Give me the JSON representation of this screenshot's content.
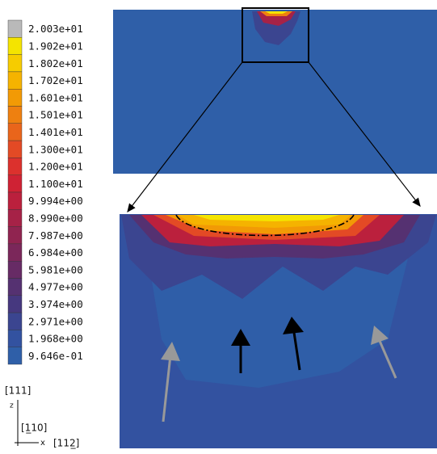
{
  "legend": {
    "levels": [
      {
        "label": "2.003e+01",
        "color": "#b9b9b9"
      },
      {
        "label": "1.902e+01",
        "color": "#f4e400"
      },
      {
        "label": "1.802e+01",
        "color": "#f6cc00"
      },
      {
        "label": "1.702e+01",
        "color": "#f5b300"
      },
      {
        "label": "1.601e+01",
        "color": "#f29a05"
      },
      {
        "label": "1.501e+01",
        "color": "#ee8010"
      },
      {
        "label": "1.401e+01",
        "color": "#e9651b"
      },
      {
        "label": "1.300e+01",
        "color": "#e34a25"
      },
      {
        "label": "1.200e+01",
        "color": "#dc312d"
      },
      {
        "label": "1.100e+01",
        "color": "#cf2234"
      },
      {
        "label": "9.994e+00",
        "color": "#bb203d"
      },
      {
        "label": "8.990e+00",
        "color": "#a62247"
      },
      {
        "label": "7.987e+00",
        "color": "#902450"
      },
      {
        "label": "6.984e+00",
        "color": "#7b275a"
      },
      {
        "label": "5.981e+00",
        "color": "#672b65"
      },
      {
        "label": "4.977e+00",
        "color": "#553171"
      },
      {
        "label": "3.974e+00",
        "color": "#46387f"
      },
      {
        "label": "2.971e+00",
        "color": "#3b4590"
      },
      {
        "label": "1.968e+00",
        "color": "#3352a0"
      },
      {
        "label": "9.646e-01",
        "color": "#2f5fa8"
      }
    ]
  },
  "axes": {
    "z_direction": "[111]",
    "z_label": "z",
    "y_direction": "[1̲10]",
    "x_label": "x",
    "x_direction": "[112̲]"
  }
}
